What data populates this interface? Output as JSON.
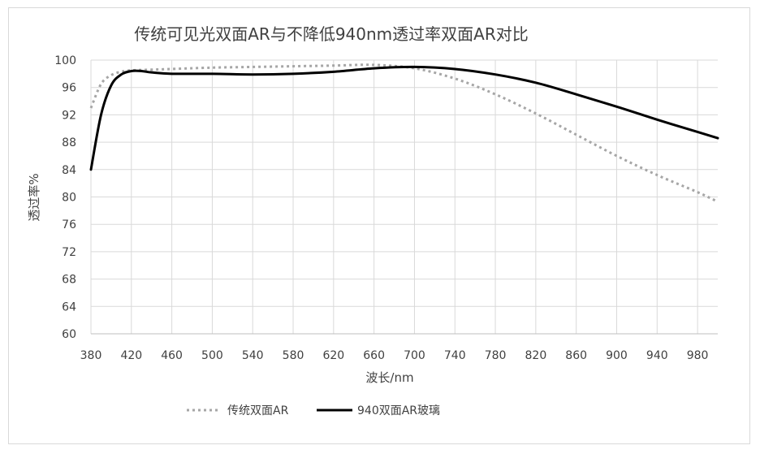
{
  "chart_data": {
    "type": "line",
    "title": "传统可见光双面AR与不降低940nm透过率双面AR对比",
    "xlabel": "波长/nm",
    "ylabel": "透过率%",
    "xlim": [
      380,
      1000
    ],
    "ylim": [
      60,
      100
    ],
    "x_ticks": [
      380,
      420,
      460,
      500,
      540,
      580,
      620,
      660,
      700,
      740,
      780,
      820,
      860,
      900,
      940,
      980
    ],
    "y_ticks": [
      60,
      64,
      68,
      72,
      76,
      80,
      84,
      88,
      92,
      96,
      100
    ],
    "grid": true,
    "legend_position": "bottom",
    "series": [
      {
        "name": "传统双面AR",
        "color": "#a6a6a6",
        "style": "dotted",
        "x": [
          380,
          390,
          400,
          410,
          420,
          440,
          460,
          500,
          540,
          580,
          620,
          660,
          700,
          740,
          780,
          820,
          860,
          900,
          940,
          980,
          1000
        ],
        "y": [
          93.0,
          96.5,
          97.8,
          98.3,
          98.5,
          98.6,
          98.7,
          98.9,
          99.0,
          99.1,
          99.2,
          99.3,
          98.8,
          97.3,
          95.0,
          92.2,
          89.1,
          86.0,
          83.2,
          80.7,
          79.3
        ]
      },
      {
        "name": "940双面AR玻璃",
        "color": "#000000",
        "style": "solid",
        "x": [
          380,
          390,
          400,
          410,
          420,
          430,
          440,
          460,
          500,
          540,
          580,
          620,
          660,
          700,
          740,
          780,
          820,
          860,
          900,
          940,
          980,
          1000
        ],
        "y": [
          84.0,
          92.0,
          96.3,
          97.9,
          98.4,
          98.4,
          98.2,
          98.0,
          98.0,
          97.9,
          98.0,
          98.3,
          98.8,
          99.0,
          98.7,
          97.9,
          96.7,
          95.0,
          93.2,
          91.3,
          89.5,
          88.6
        ]
      }
    ]
  }
}
